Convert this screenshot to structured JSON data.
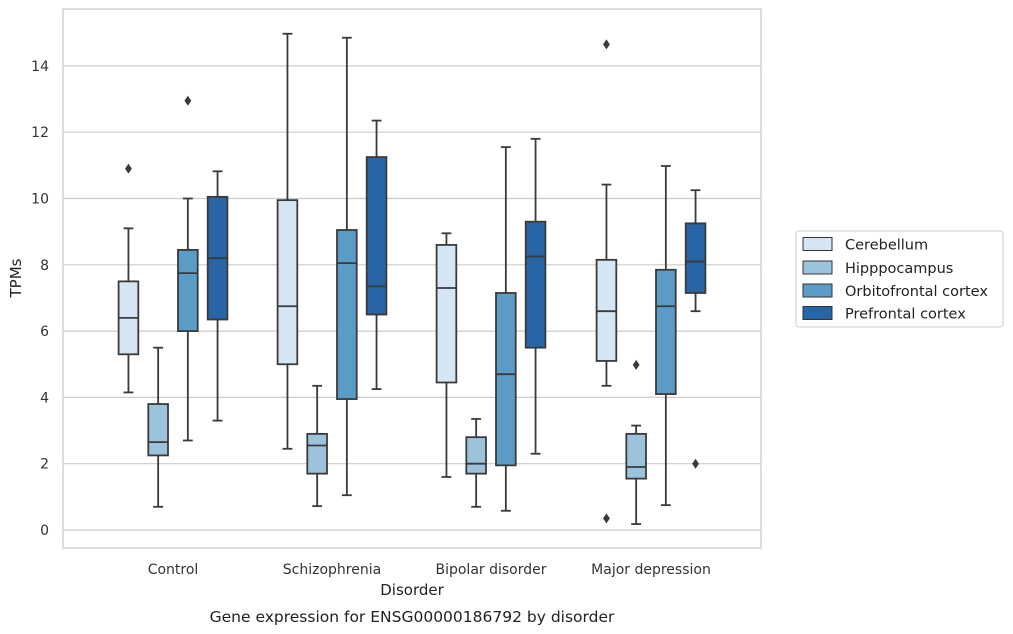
{
  "chart_data": {
    "type": "box",
    "title": "",
    "caption": "Gene expression for ENSG00000186792 by disorder",
    "xlabel": "Disorder",
    "ylabel": "TPMs",
    "ylim": [
      -0.5,
      15.6
    ],
    "yticks": [
      0,
      2,
      4,
      6,
      8,
      10,
      12,
      14
    ],
    "grid": "horizontal",
    "legend_placement": "right",
    "categories": [
      "Control",
      "Schizophrenia",
      "Bipolar disorder",
      "Major depression"
    ],
    "series": [
      {
        "name": "Cerebellum",
        "color": "#d6e5f3",
        "boxes": [
          {
            "whislo": 4.15,
            "q1": 5.3,
            "med": 6.4,
            "q3": 7.5,
            "whishi": 9.1,
            "fliers": [
              10.9
            ]
          },
          {
            "whislo": 2.45,
            "q1": 5.0,
            "med": 6.75,
            "q3": 9.95,
            "whishi": 14.97,
            "fliers": []
          },
          {
            "whislo": 1.6,
            "q1": 4.45,
            "med": 7.3,
            "q3": 8.6,
            "whishi": 8.95,
            "fliers": []
          },
          {
            "whislo": 4.35,
            "q1": 5.1,
            "med": 6.6,
            "q3": 8.15,
            "whishi": 10.42,
            "fliers": [
              14.65,
              0.35
            ]
          }
        ]
      },
      {
        "name": "Hipppocampus",
        "color": "#9dc3dc",
        "boxes": [
          {
            "whislo": 0.7,
            "q1": 2.25,
            "med": 2.65,
            "q3": 3.8,
            "whishi": 5.5,
            "fliers": []
          },
          {
            "whislo": 0.72,
            "q1": 1.7,
            "med": 2.55,
            "q3": 2.9,
            "whishi": 4.35,
            "fliers": []
          },
          {
            "whislo": 0.7,
            "q1": 1.7,
            "med": 2.0,
            "q3": 2.8,
            "whishi": 3.35,
            "fliers": []
          },
          {
            "whislo": 0.18,
            "q1": 1.55,
            "med": 1.9,
            "q3": 2.9,
            "whishi": 3.15,
            "fliers": [
              4.98
            ]
          }
        ]
      },
      {
        "name": "Orbitofrontal cortex",
        "color": "#5b9cc6",
        "boxes": [
          {
            "whislo": 2.7,
            "q1": 6.0,
            "med": 7.75,
            "q3": 8.45,
            "whishi": 10.0,
            "fliers": [
              12.95
            ]
          },
          {
            "whislo": 1.05,
            "q1": 3.95,
            "med": 8.05,
            "q3": 9.05,
            "whishi": 14.85,
            "fliers": []
          },
          {
            "whislo": 0.58,
            "q1": 1.95,
            "med": 4.7,
            "q3": 7.15,
            "whishi": 11.55,
            "fliers": []
          },
          {
            "whislo": 0.75,
            "q1": 4.1,
            "med": 6.75,
            "q3": 7.85,
            "whishi": 10.98,
            "fliers": []
          }
        ]
      },
      {
        "name": "Prefrontal cortex",
        "color": "#2765a5",
        "boxes": [
          {
            "whislo": 3.3,
            "q1": 6.35,
            "med": 8.2,
            "q3": 10.05,
            "whishi": 10.82,
            "fliers": []
          },
          {
            "whislo": 4.25,
            "q1": 6.5,
            "med": 7.35,
            "q3": 11.25,
            "whishi": 12.35,
            "fliers": []
          },
          {
            "whislo": 2.3,
            "q1": 5.5,
            "med": 8.25,
            "q3": 9.3,
            "whishi": 11.8,
            "fliers": []
          },
          {
            "whislo": 6.6,
            "q1": 7.15,
            "med": 8.1,
            "q3": 9.25,
            "whishi": 10.25,
            "fliers": [
              2.0
            ]
          }
        ]
      }
    ]
  }
}
